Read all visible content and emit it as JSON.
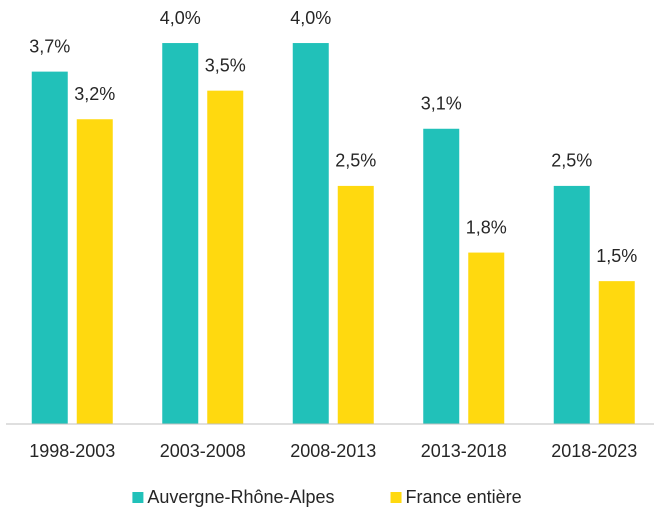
{
  "chart_data": {
    "type": "bar",
    "categories": [
      "1998-2003",
      "2003-2008",
      "2008-2013",
      "2013-2018",
      "2018-2023"
    ],
    "series": [
      {
        "name": "Auvergne-Rhône-Alpes",
        "color": "#21c1b9",
        "values": [
          3.7,
          4.0,
          4.0,
          3.1,
          2.5
        ],
        "value_labels": [
          "3,7%",
          "4,0%",
          "4,0%",
          "3,1%",
          "2,5%"
        ]
      },
      {
        "name": "France entière",
        "color": "#ffd90f",
        "values": [
          3.2,
          3.5,
          2.5,
          1.8,
          1.5
        ],
        "value_labels": [
          "3,2%",
          "3,5%",
          "2,5%",
          "1,8%",
          "1,5%"
        ]
      }
    ],
    "ylim": [
      0,
      4.2
    ],
    "legend": "bottom"
  }
}
